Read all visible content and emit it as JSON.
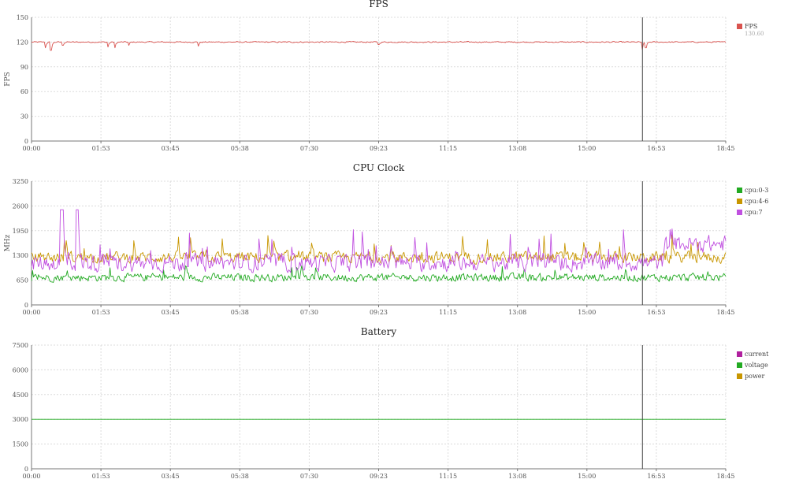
{
  "chart_data": [
    {
      "id": "fps",
      "type": "line",
      "title": "FPS",
      "xlabel": "",
      "ylabel": "FPS",
      "ylim": [
        0,
        150
      ],
      "yticks": [
        0,
        30,
        60,
        90,
        120,
        150
      ],
      "xticks": [
        "00:00",
        "01:53",
        "03:45",
        "05:38",
        "07:30",
        "09:23",
        "11:15",
        "13:08",
        "15:00",
        "16:53",
        "18:45"
      ],
      "xlim_seconds": [
        0,
        1125
      ],
      "cursor_time": "16:30",
      "legend_position": "right",
      "grid": true,
      "series": [
        {
          "name": "FPS",
          "color": "#d9534f",
          "legend_value": "130.60",
          "pattern": {
            "base": 120,
            "noise": 1.0,
            "dips": [
              [
                0.02,
                113
              ],
              [
                0.028,
                110
              ],
              [
                0.045,
                116
              ],
              [
                0.11,
                114
              ],
              [
                0.12,
                113
              ],
              [
                0.14,
                116
              ],
              [
                0.24,
                115
              ],
              [
                0.5,
                117
              ],
              [
                0.88,
                111
              ],
              [
                0.885,
                113
              ]
            ]
          }
        }
      ]
    },
    {
      "id": "cpu",
      "type": "line",
      "title": "CPU Clock",
      "xlabel": "",
      "ylabel": "MHz",
      "ylim": [
        0,
        3250
      ],
      "yticks": [
        0,
        650,
        1300,
        1950,
        2600,
        3250
      ],
      "xticks": [
        "00:00",
        "01:53",
        "03:45",
        "05:38",
        "07:30",
        "09:23",
        "11:15",
        "13:08",
        "15:00",
        "16:53",
        "18:45"
      ],
      "xlim_seconds": [
        0,
        1125
      ],
      "cursor_time": "16:30",
      "legend_position": "top-right",
      "grid": true,
      "series": [
        {
          "name": "cpu:0-3",
          "color": "#22aa22",
          "pattern": {
            "base": 720,
            "noise": 140,
            "spikes": 30,
            "spike_max": 1050
          }
        },
        {
          "name": "cpu:4-6",
          "color": "#c89600",
          "pattern": {
            "base": 1250,
            "noise": 200,
            "spikes": 40,
            "spike_max": 1850
          }
        },
        {
          "name": "cpu:7",
          "color": "#c050e0",
          "pattern": {
            "base": 1100,
            "noise": 300,
            "spikes": 35,
            "spike_max": 2000,
            "tall_pulses": [
              [
                0.041,
                0.046,
                2500
              ],
              [
                0.063,
                0.068,
                2500
              ]
            ],
            "late_rise": [
              0.91,
              2000
            ]
          }
        }
      ]
    },
    {
      "id": "battery",
      "type": "line",
      "title": "Battery",
      "xlabel": "",
      "ylabel": "",
      "ylim": [
        0,
        7500
      ],
      "yticks": [
        0,
        1500,
        3000,
        4500,
        6000,
        7500
      ],
      "xticks": [
        "00:00",
        "01:53",
        "03:45",
        "05:38",
        "07:30",
        "09:23",
        "11:15",
        "13:08",
        "15:00",
        "16:53",
        "18:45"
      ],
      "xlim_seconds": [
        0,
        1125
      ],
      "cursor_time": "16:30",
      "legend_position": "top-right",
      "grid": true,
      "series": [
        {
          "name": "current",
          "color": "#b0209e",
          "pattern": {
            "constant": null
          }
        },
        {
          "name": "voltage",
          "color": "#22aa22",
          "pattern": {
            "constant": 3000
          }
        },
        {
          "name": "power",
          "color": "#c89600",
          "pattern": {
            "constant": null
          }
        }
      ]
    }
  ]
}
